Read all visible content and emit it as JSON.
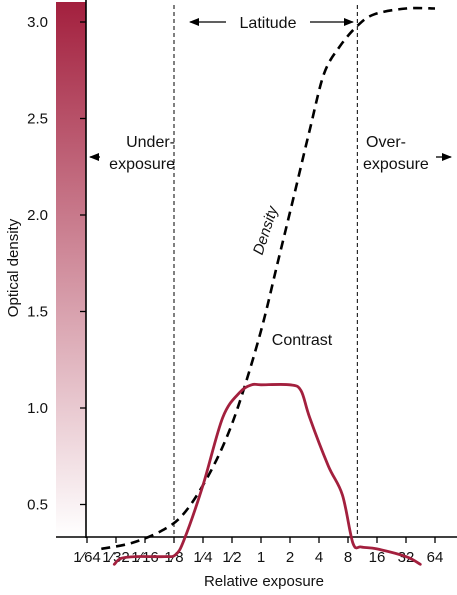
{
  "chart_data": {
    "type": "line",
    "title": "",
    "xlabel": "Relative exposure",
    "ylabel": "Optical density",
    "x_scale": "log2",
    "x_ticks": [
      {
        "value": 0.015625,
        "label": "1⁄64"
      },
      {
        "value": 0.03125,
        "label": "1⁄32"
      },
      {
        "value": 0.0625,
        "label": "1⁄16"
      },
      {
        "value": 0.125,
        "label": "1⁄8"
      },
      {
        "value": 0.25,
        "label": "1⁄4"
      },
      {
        "value": 0.5,
        "label": "1⁄2"
      },
      {
        "value": 1,
        "label": "1"
      },
      {
        "value": 2,
        "label": "2"
      },
      {
        "value": 4,
        "label": "4"
      },
      {
        "value": 8,
        "label": "8"
      },
      {
        "value": 16,
        "label": "16"
      },
      {
        "value": 32,
        "label": "32"
      },
      {
        "value": 64,
        "label": "64"
      }
    ],
    "y_ticks": [
      {
        "value": 0.5,
        "label": "0.5"
      },
      {
        "value": 1.0,
        "label": "1.0"
      },
      {
        "value": 1.5,
        "label": "1.5"
      },
      {
        "value": 2.0,
        "label": "2.0"
      },
      {
        "value": 2.5,
        "label": "2.5"
      },
      {
        "value": 3.0,
        "label": "3.0"
      }
    ],
    "ylim": [
      0.18,
      3.12
    ],
    "grid": false,
    "series": [
      {
        "name": "Density",
        "style": "dashed",
        "color": "#000000",
        "points": [
          [
            0.022,
            0.27
          ],
          [
            0.045,
            0.3
          ],
          [
            0.09,
            0.36
          ],
          [
            0.15,
            0.44
          ],
          [
            0.25,
            0.6
          ],
          [
            0.4,
            0.8
          ],
          [
            0.6,
            1.03
          ],
          [
            1.0,
            1.4
          ],
          [
            1.5,
            1.76
          ],
          [
            2.2,
            2.1
          ],
          [
            3.2,
            2.44
          ],
          [
            4.5,
            2.73
          ],
          [
            6.5,
            2.87
          ],
          [
            10,
            2.98
          ],
          [
            15,
            3.04
          ],
          [
            32,
            3.07
          ],
          [
            64,
            3.07
          ]
        ]
      },
      {
        "name": "Contrast",
        "style": "solid",
        "color": "#a3203e",
        "points": [
          [
            0.03,
            0.19
          ],
          [
            0.035,
            0.22
          ],
          [
            0.05,
            0.23
          ],
          [
            0.1,
            0.23
          ],
          [
            0.13,
            0.24
          ],
          [
            0.16,
            0.32
          ],
          [
            0.25,
            0.6
          ],
          [
            0.4,
            0.95
          ],
          [
            0.6,
            1.08
          ],
          [
            0.8,
            1.12
          ],
          [
            1.0,
            1.12
          ],
          [
            2.0,
            1.12
          ],
          [
            2.6,
            1.09
          ],
          [
            3.2,
            0.95
          ],
          [
            5,
            0.7
          ],
          [
            7,
            0.55
          ],
          [
            9,
            0.3
          ],
          [
            11,
            0.28
          ],
          [
            16,
            0.27
          ],
          [
            32,
            0.23
          ],
          [
            45,
            0.19
          ]
        ]
      }
    ],
    "reference_lines": [
      {
        "x": 0.125,
        "style": "dashed"
      },
      {
        "x": 10,
        "style": "dashed"
      }
    ],
    "density_bar": {
      "from_color": "#a3203e",
      "to_color": "#ffffff"
    },
    "annotations": {
      "latitude": "Latitude",
      "under_line1": "Under-",
      "under_line2": "exposure",
      "over_line1": "Over-",
      "over_line2": "exposure",
      "density_label": "Density",
      "contrast_label": "Contrast"
    }
  }
}
